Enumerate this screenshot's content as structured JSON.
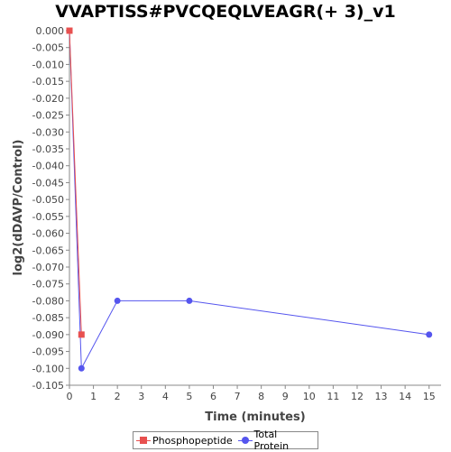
{
  "chart_data": {
    "type": "line",
    "title": "VVAPTISS#PVCQEQLVEAGR(+ 3)_v1",
    "xlabel": "Time (minutes)",
    "ylabel": "log2(dDAVP/Control)",
    "xlim": [
      0,
      15.5
    ],
    "ylim": [
      -0.105,
      0.0
    ],
    "x_ticks": [
      "0",
      "1",
      "2",
      "3",
      "4",
      "5",
      "6",
      "7",
      "8",
      "9",
      "10",
      "11",
      "12",
      "13",
      "14",
      "15"
    ],
    "y_ticks": [
      "0.000",
      "-0.005",
      "-0.010",
      "-0.015",
      "-0.020",
      "-0.025",
      "-0.030",
      "-0.035",
      "-0.040",
      "-0.045",
      "-0.050",
      "-0.055",
      "-0.060",
      "-0.065",
      "-0.070",
      "-0.075",
      "-0.080",
      "-0.085",
      "-0.090",
      "-0.095",
      "-0.100",
      "-0.105"
    ],
    "grid": false,
    "legend_position": "bottom",
    "series": [
      {
        "name": "Phosphopeptide",
        "color": "#e8504f",
        "marker": "square",
        "points": [
          [
            0,
            0.0
          ],
          [
            0.5,
            -0.09
          ]
        ]
      },
      {
        "name": "Total Protein",
        "color": "#5555ee",
        "marker": "circle",
        "points": [
          [
            0,
            0.0
          ],
          [
            0.5,
            -0.1
          ],
          [
            2,
            -0.08
          ],
          [
            5,
            -0.08
          ],
          [
            15,
            -0.09
          ]
        ]
      }
    ]
  }
}
